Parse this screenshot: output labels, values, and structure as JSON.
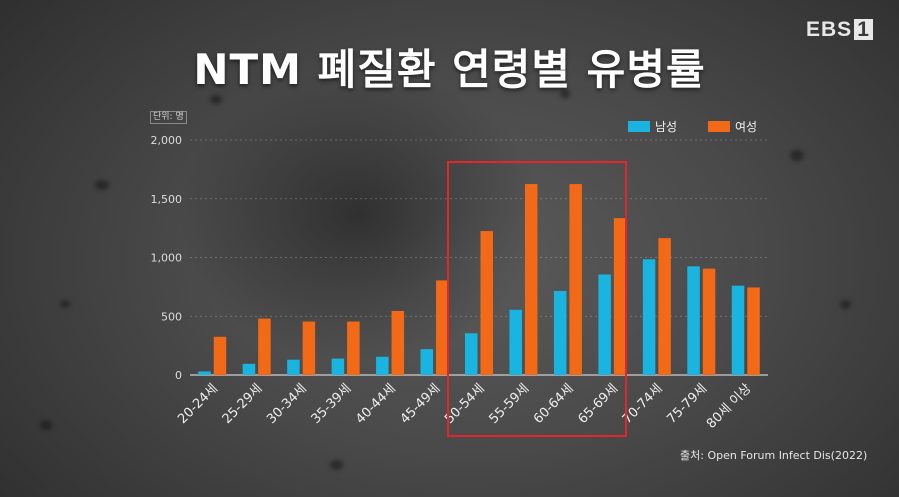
{
  "logo": {
    "text": "EBS",
    "digit": "1"
  },
  "title": "NTM 폐질환 연령별 유병률",
  "unit_label": "단위: 명",
  "source": "출처: Open Forum Infect Dis(2022)",
  "colors": {
    "male": "#19b5e0",
    "female": "#f26a17",
    "highlight": "#e3262b"
  },
  "chart_data": {
    "type": "bar",
    "categories": [
      "20-24세",
      "25-29세",
      "30-34세",
      "35-39세",
      "40-44세",
      "45-49세",
      "50-54세",
      "55-59세",
      "60-64세",
      "65-69세",
      "70-74세",
      "75-79세",
      "80세 이상"
    ],
    "series": [
      {
        "name": "남성",
        "values": [
          30,
          95,
          130,
          140,
          155,
          220,
          355,
          555,
          715,
          855,
          985,
          925,
          760
        ]
      },
      {
        "name": "여성",
        "values": [
          325,
          480,
          455,
          455,
          545,
          805,
          1225,
          1625,
          1625,
          1335,
          1165,
          905,
          745
        ]
      }
    ],
    "yticks": [
      "0",
      "500",
      "1,000",
      "1,500",
      "2,000"
    ],
    "ylim": [
      0,
      2000
    ],
    "legend": "top-right",
    "grid": true,
    "highlight_categories": [
      "50-54세",
      "55-59세",
      "60-64세",
      "65-69세"
    ]
  }
}
